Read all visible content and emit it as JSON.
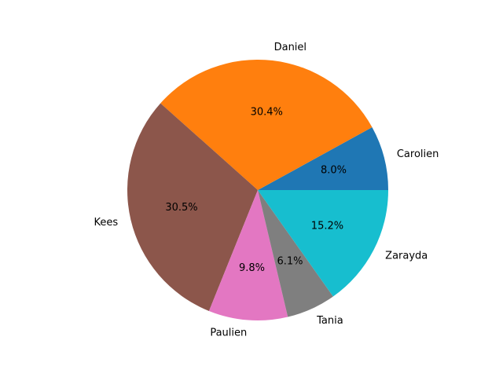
{
  "chart_data": {
    "type": "pie",
    "title": "",
    "start_angle_deg": 0,
    "direction": "counterclockwise",
    "slices": [
      {
        "label": "Carolien",
        "percent_label": "8.0%",
        "value": 8.0,
        "color": "#1f77b4"
      },
      {
        "label": "Daniel",
        "percent_label": "30.4%",
        "value": 30.4,
        "color": "#ff7f0e"
      },
      {
        "label": "Kees",
        "percent_label": "30.5%",
        "value": 30.5,
        "color": "#8c564b"
      },
      {
        "label": "Paulien",
        "percent_label": "9.8%",
        "value": 9.8,
        "color": "#e377c2"
      },
      {
        "label": "Tania",
        "percent_label": "6.1%",
        "value": 6.1,
        "color": "#7f7f7f"
      },
      {
        "label": "Zarayda",
        "percent_label": "15.2%",
        "value": 15.2,
        "color": "#17becf"
      }
    ]
  }
}
